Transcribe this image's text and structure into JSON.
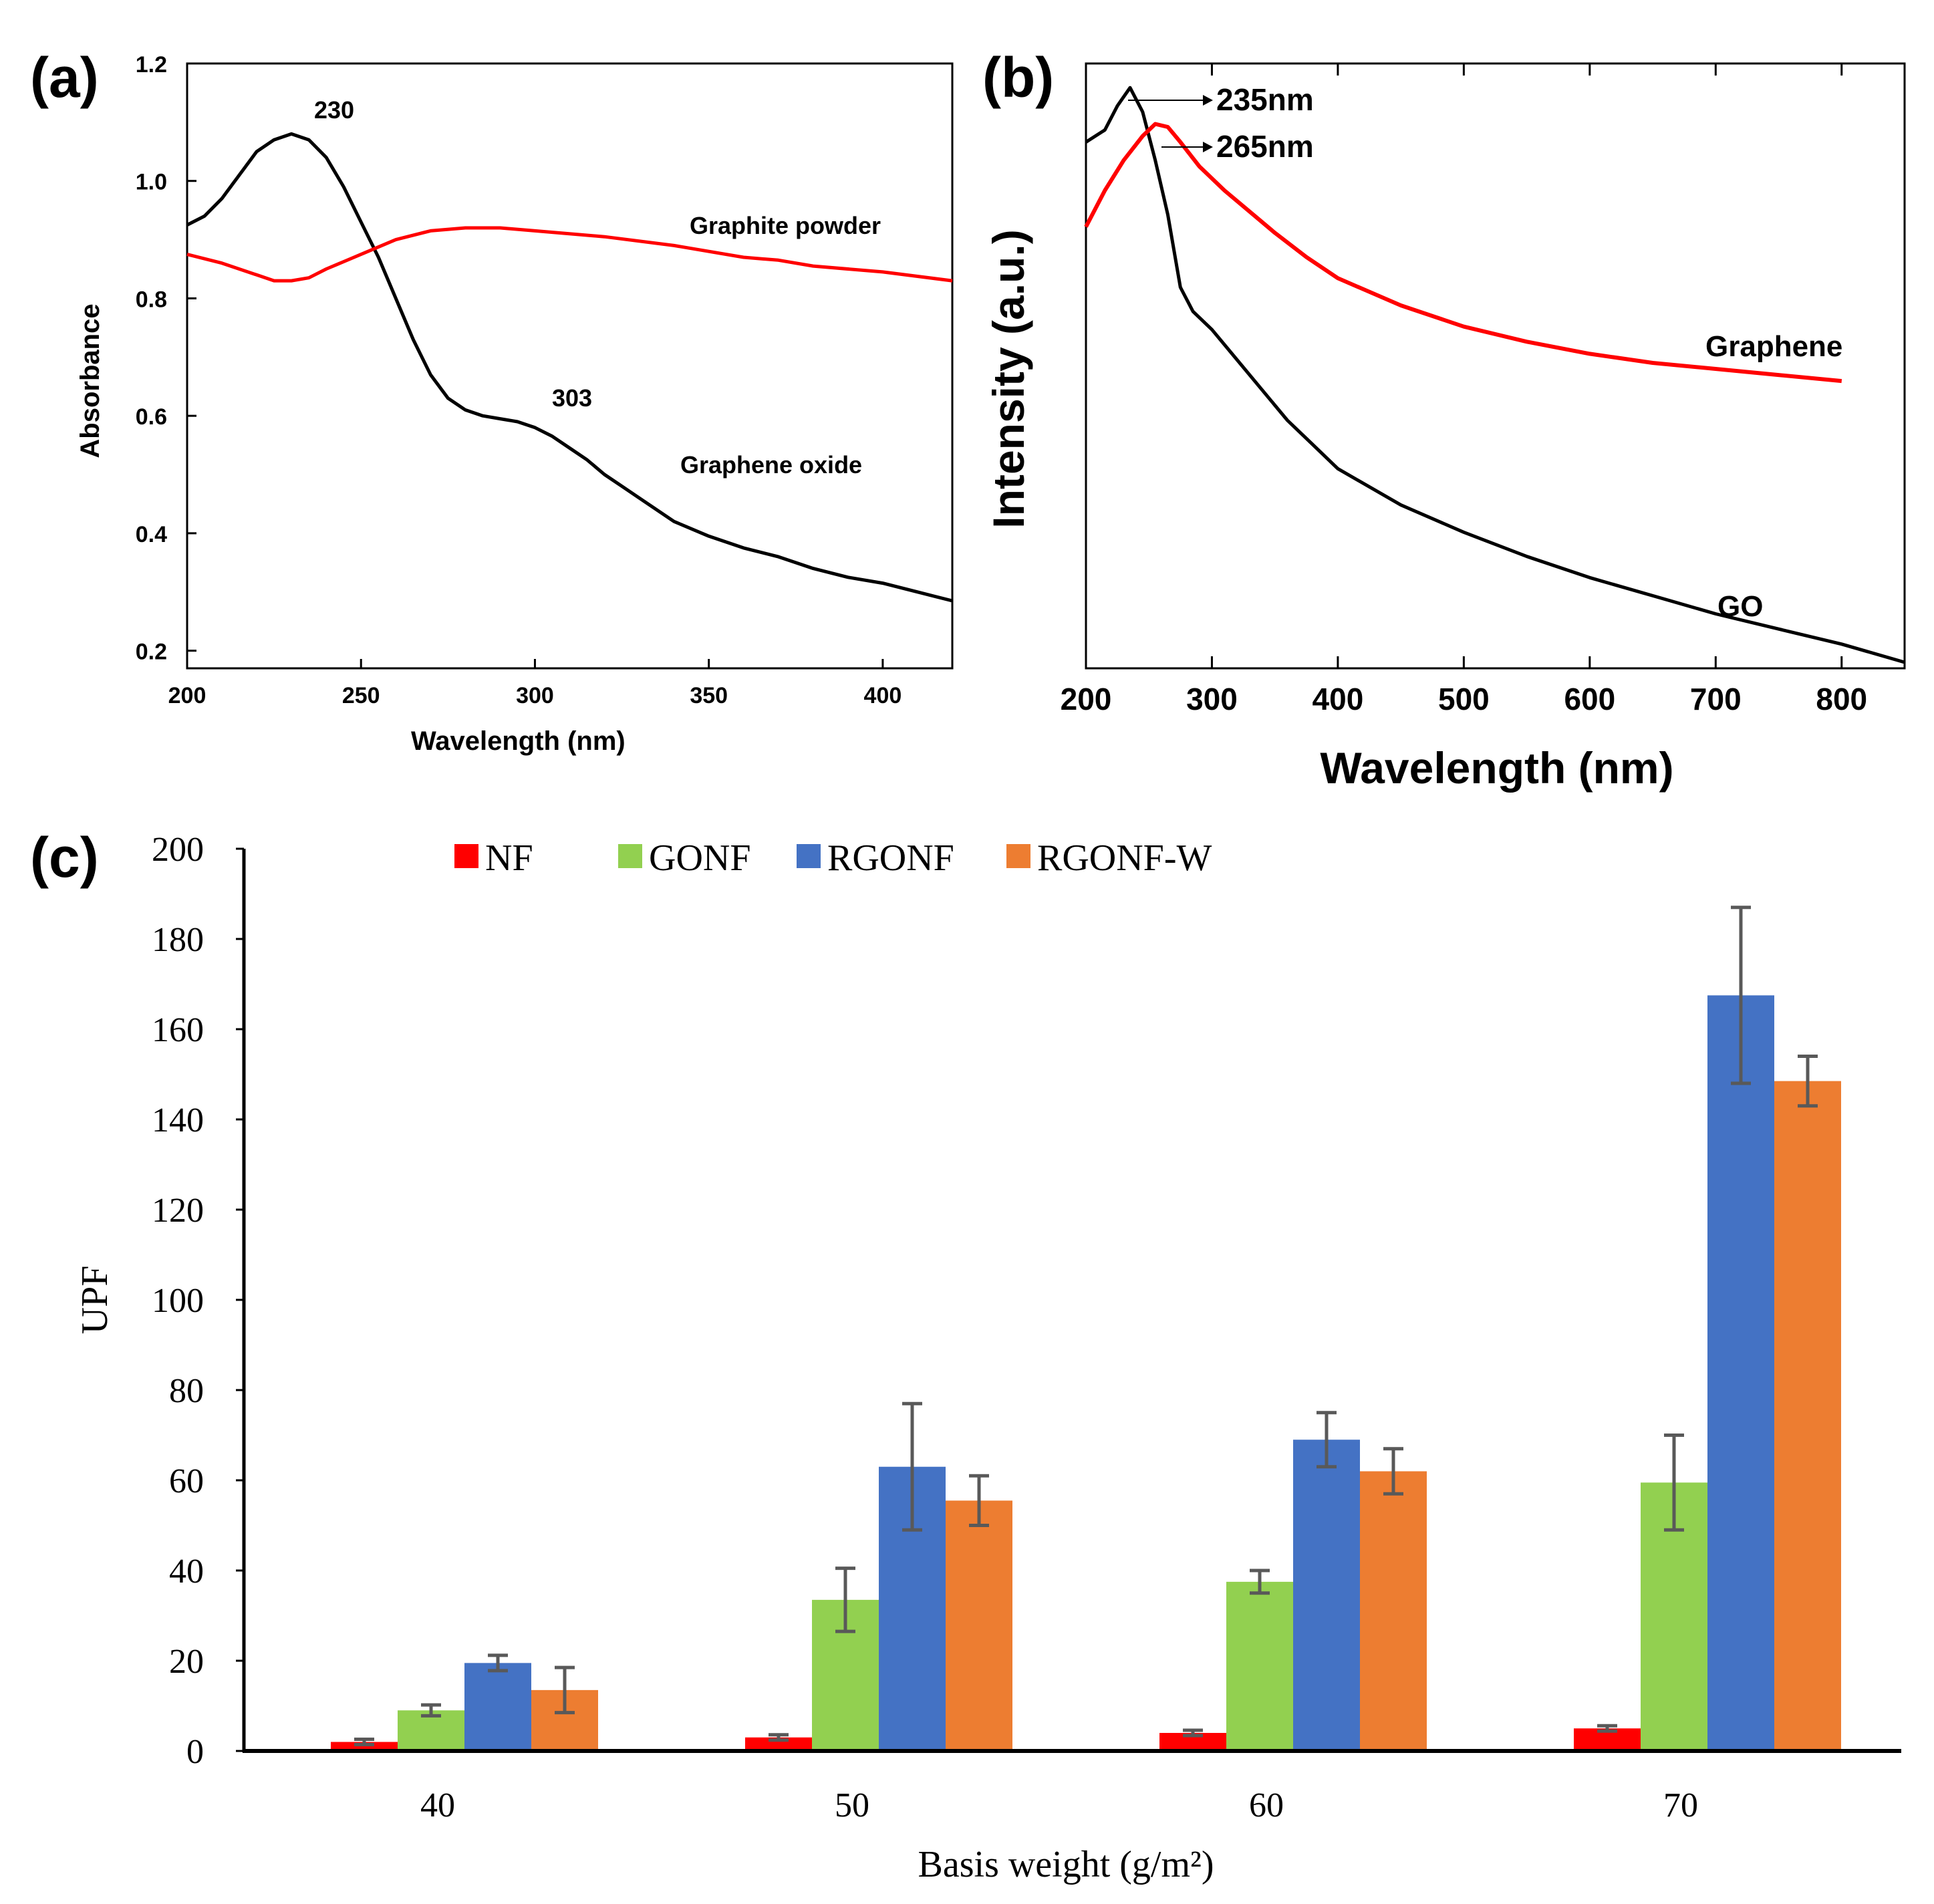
{
  "panels": {
    "a": {
      "label": "(a)",
      "chart_data": {
        "type": "line",
        "title": "",
        "xlabel": "Wavelength (nm)",
        "ylabel": "Absorbance",
        "xlim": [
          200,
          420
        ],
        "ylim": [
          0.17,
          1.2
        ],
        "xticks": [
          200,
          250,
          300,
          350,
          400
        ],
        "yticks": [
          0.2,
          0.4,
          0.6,
          0.8,
          1.0,
          1.2
        ],
        "ytick_labels": [
          "0.2",
          "0.4",
          "0.6",
          "0.8",
          "1.0",
          "1.2"
        ],
        "series": [
          {
            "name": "Graphene oxide",
            "color": "#000000",
            "x": [
              200,
              205,
              210,
              215,
              220,
              225,
              230,
              235,
              240,
              245,
              250,
              255,
              260,
              265,
              270,
              275,
              280,
              285,
              290,
              295,
              300,
              305,
              310,
              315,
              320,
              325,
              330,
              340,
              350,
              360,
              370,
              380,
              390,
              400,
              410,
              420
            ],
            "y": [
              0.925,
              0.94,
              0.97,
              1.01,
              1.05,
              1.07,
              1.08,
              1.07,
              1.04,
              0.99,
              0.93,
              0.87,
              0.8,
              0.73,
              0.67,
              0.63,
              0.61,
              0.6,
              0.595,
              0.59,
              0.58,
              0.565,
              0.545,
              0.525,
              0.5,
              0.48,
              0.46,
              0.42,
              0.395,
              0.375,
              0.36,
              0.34,
              0.325,
              0.315,
              0.3,
              0.285
            ]
          },
          {
            "name": "Graphite powder",
            "color": "#ff0000",
            "x": [
              200,
              210,
              220,
              225,
              230,
              235,
              240,
              250,
              260,
              270,
              280,
              290,
              300,
              320,
              340,
              360,
              370,
              380,
              400,
              420
            ],
            "y": [
              0.875,
              0.86,
              0.84,
              0.83,
              0.83,
              0.835,
              0.85,
              0.875,
              0.9,
              0.915,
              0.92,
              0.92,
              0.915,
              0.905,
              0.89,
              0.87,
              0.865,
              0.855,
              0.845,
              0.83
            ]
          }
        ],
        "annotations": [
          "230",
          "303",
          "Graphite powder",
          "Graphene oxide"
        ]
      }
    },
    "b": {
      "label": "(b)",
      "chart_data": {
        "type": "line",
        "title": "",
        "xlabel": "Wavelength (nm)",
        "ylabel": "Intensity (a.u.)",
        "xlim": [
          200,
          850
        ],
        "ylim": [
          0,
          1
        ],
        "xticks": [
          200,
          300,
          400,
          500,
          600,
          700,
          800
        ],
        "series": [
          {
            "name": "GO",
            "color": "#000000",
            "x": [
              200,
              215,
              225,
              235,
              245,
              255,
              265,
              275,
              285,
              300,
              320,
              340,
              360,
              380,
              400,
              450,
              500,
              550,
              600,
              650,
              700,
              750,
              800,
              850
            ],
            "y": [
              0.87,
              0.89,
              0.93,
              0.96,
              0.92,
              0.84,
              0.75,
              0.63,
              0.59,
              0.56,
              0.51,
              0.46,
              0.41,
              0.37,
              0.33,
              0.27,
              0.225,
              0.185,
              0.15,
              0.12,
              0.09,
              0.065,
              0.04,
              0.01
            ]
          },
          {
            "name": "Graphene",
            "color": "#ff0000",
            "x": [
              200,
              215,
              230,
              245,
              255,
              265,
              275,
              290,
              310,
              330,
              350,
              375,
              400,
              450,
              500,
              550,
              600,
              650,
              700,
              750,
              800
            ],
            "y": [
              0.73,
              0.79,
              0.84,
              0.88,
              0.9,
              0.895,
              0.87,
              0.83,
              0.79,
              0.755,
              0.72,
              0.68,
              0.645,
              0.6,
              0.565,
              0.54,
              0.52,
              0.505,
              0.495,
              0.485,
              0.475
            ]
          }
        ],
        "annotations": [
          "235nm",
          "265nm",
          "Graphene",
          "GO"
        ]
      }
    },
    "c": {
      "label": "(c)",
      "chart_data": {
        "type": "bar",
        "title": "",
        "xlabel": "Basis weight (g/m²)",
        "ylabel": "UPF",
        "ylim": [
          0,
          200
        ],
        "yticks": [
          0,
          20,
          40,
          60,
          80,
          100,
          120,
          140,
          160,
          180,
          200
        ],
        "legend_position": "top",
        "categories": [
          "40",
          "50",
          "60",
          "70"
        ],
        "series": [
          {
            "name": "NF",
            "color": "#ff0000",
            "values": [
              2,
              3,
              4,
              5
            ],
            "errors": [
              0.6,
              0.6,
              0.6,
              0.6
            ]
          },
          {
            "name": "GONF",
            "color": "#92d050",
            "values": [
              9,
              33.5,
              37.5,
              59.5
            ],
            "errors": [
              1.2,
              7,
              2.5,
              10.5
            ]
          },
          {
            "name": "RGONF",
            "color": "#4472c4",
            "values": [
              19.5,
              63,
              69,
              167.5
            ],
            "errors": [
              1.7,
              14,
              6,
              19.5
            ]
          },
          {
            "name": "RGONF-W",
            "color": "#ed7d31",
            "values": [
              13.5,
              55.5,
              62,
              148.5
            ],
            "errors": [
              5,
              5.5,
              5,
              5.5
            ]
          }
        ]
      }
    }
  }
}
